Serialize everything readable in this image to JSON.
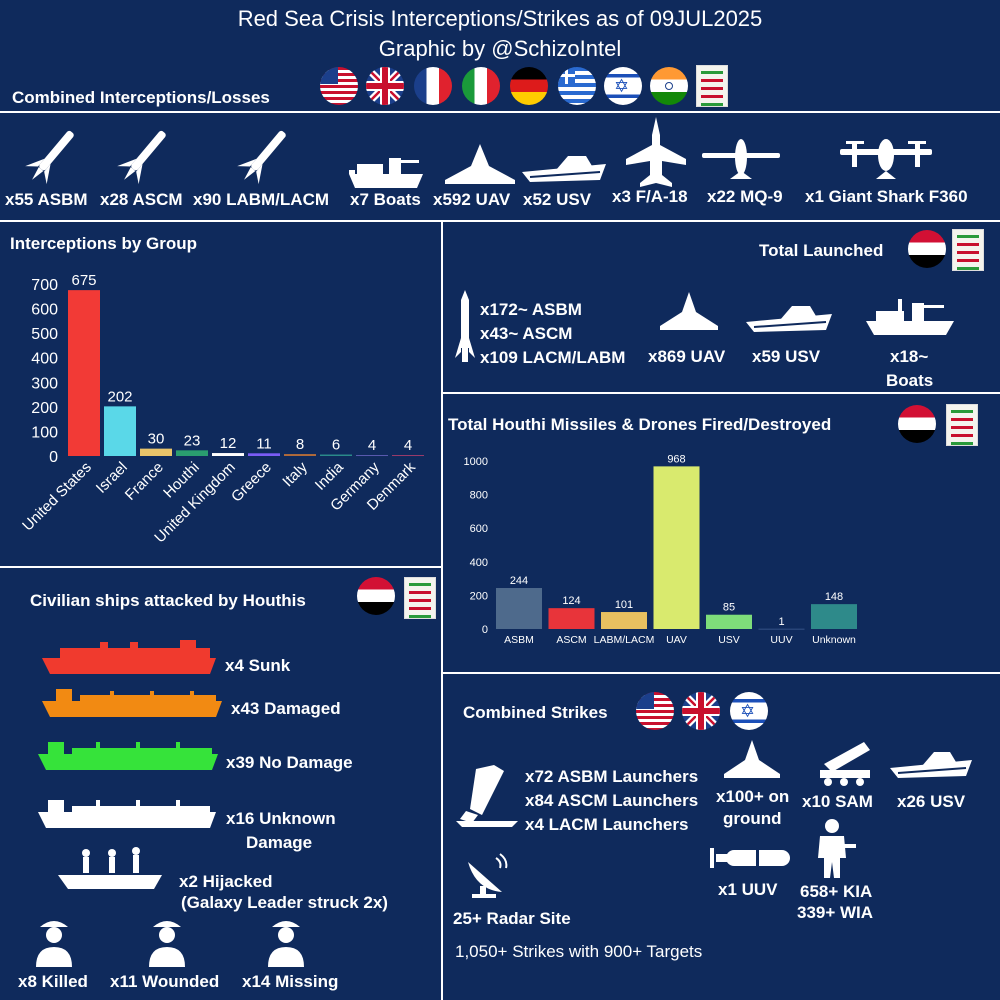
{
  "header": {
    "title_line1": "Red Sea Crisis Interceptions/Strikes as of 09JUL2025",
    "title_line2": "Graphic by @SchizoIntel"
  },
  "combined": {
    "title": "Combined Interceptions/Losses",
    "flags": [
      "us-flag",
      "uk-flag",
      "france-flag",
      "italy-flag",
      "germany-flag",
      "greece-flag",
      "israel-flag",
      "india-flag",
      "houthi-emblem"
    ],
    "items": [
      {
        "label": "x55 ASBM",
        "icon": "missile-icon"
      },
      {
        "label": "x28 ASCM",
        "icon": "missile-icon"
      },
      {
        "label": "x90 LABM/LACM",
        "icon": "missile-icon"
      },
      {
        "label": "x7 Boats",
        "icon": "armed-boat-icon"
      },
      {
        "label": "x592 UAV",
        "icon": "drone-icon"
      },
      {
        "label": "x52 USV",
        "icon": "speedboat-icon"
      },
      {
        "label": "x3 F/A-18",
        "icon": "fighter-jet-icon"
      },
      {
        "label": "x22 MQ-9",
        "icon": "mq9-drone-icon"
      },
      {
        "label": "x1 Giant Shark F360",
        "icon": "vtol-drone-icon"
      }
    ]
  },
  "interceptions": {
    "title": "Interceptions by Group"
  },
  "total_launched": {
    "title": "Total Launched",
    "missiles": [
      "x172~ ASBM",
      "x43~ ASCM",
      "x109 LACM/LABM"
    ],
    "uav": "x869 UAV",
    "usv": "x59 USV",
    "boats_line1": "x18~",
    "boats_line2": "Boats"
  },
  "houthi_fired": {
    "title": "Total Houthi Missiles & Drones Fired/Destroyed"
  },
  "civilian": {
    "title": "Civilian ships attacked by Houthis",
    "sunk": "x4 Sunk",
    "damaged": "x43 Damaged",
    "no_damage": "x39 No Damage",
    "unknown_line1": "x16 Unknown",
    "unknown_line2": "Damage",
    "hijacked_line1": "x2 Hijacked",
    "hijacked_line2": "(Galaxy Leader struck 2x)",
    "killed": "x8 Killed",
    "wounded": "x11 Wounded",
    "missing": "x14 Missing",
    "colors": {
      "sunk": "#f03a2e",
      "damaged": "#f28a12",
      "no_damage": "#36e33a",
      "unknown": "#ffffff"
    }
  },
  "strikes": {
    "title": "Combined Strikes",
    "launchers": [
      "x72 ASBM Launchers",
      "x84 ASCM Launchers",
      "x4 LACM Launchers"
    ],
    "uav_line1": "x100+ on",
    "uav_line2": "ground",
    "sam": "x10 SAM",
    "usv": "x26 USV",
    "uuv": "x1 UUV",
    "kia": "658+ KIA",
    "wia": "339+ WIA",
    "radar": "25+ Radar Site",
    "summary": "1,050+ Strikes with 900+ Targets"
  },
  "chart_data": [
    {
      "type": "bar",
      "title": "Interceptions by Group",
      "categories": [
        "United States",
        "Israel",
        "France",
        "Houthi",
        "United Kingdom",
        "Greece",
        "Italy",
        "India",
        "Germany",
        "Denmark"
      ],
      "values": [
        675,
        202,
        30,
        23,
        12,
        11,
        8,
        6,
        4,
        4
      ],
      "colors": [
        "#f23a36",
        "#5ad8e8",
        "#e9c46a",
        "#2a9d6f",
        "#ffffff",
        "#7b5cf5",
        "#b06a3a",
        "#2a8a8a",
        "#5a5ab0",
        "#9a3a6a"
      ],
      "yticks": [
        0,
        100,
        200,
        300,
        400,
        500,
        600,
        700
      ],
      "ylim": [
        0,
        700
      ],
      "grid": false
    },
    {
      "type": "bar",
      "title": "Total Houthi Missiles & Drones Fired/Destroyed",
      "categories": [
        "ASBM",
        "ASCM",
        "LABM/LACM",
        "UAV",
        "USV",
        "UUV",
        "Unknown"
      ],
      "values": [
        244,
        124,
        101,
        968,
        85,
        1,
        148
      ],
      "colors": [
        "#4e6a8c",
        "#e8343a",
        "#e8c060",
        "#d9ea6e",
        "#7edd7a",
        "#5a7ab0",
        "#2e8a8a"
      ],
      "yticks": [
        0,
        200,
        400,
        600,
        800,
        1000
      ],
      "ylim": [
        0,
        1000
      ],
      "grid": false
    }
  ]
}
